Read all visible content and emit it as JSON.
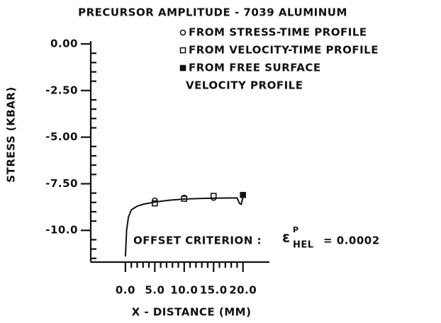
{
  "chart_data": {
    "type": "scatter",
    "title": "PRECURSOR AMPLITUDE - 7039 ALUMINUM",
    "xlabel": "X - DISTANCE (MM)",
    "ylabel": "STRESS (KBAR)",
    "xlim": [
      -5.9,
      24.5
    ],
    "ylim": [
      -11.7,
      0
    ],
    "xticks": [
      {
        "value": 0,
        "label": "0.0"
      },
      {
        "value": 5,
        "label": "5.0"
      },
      {
        "value": 10,
        "label": "10.0"
      },
      {
        "value": 15,
        "label": "15.0"
      },
      {
        "value": 20,
        "label": "20.0"
      }
    ],
    "yticks": [
      {
        "value": 0,
        "label": "0.00"
      },
      {
        "value": -2.5,
        "label": "-2.50"
      },
      {
        "value": -5,
        "label": "-5.00"
      },
      {
        "value": -7.5,
        "label": "-7.50"
      },
      {
        "value": -10,
        "label": "-10.0"
      }
    ],
    "xminorticks": [
      1,
      2,
      3,
      4,
      6,
      7,
      8,
      9,
      11,
      12,
      13,
      14,
      16,
      17,
      18,
      19
    ],
    "yminorticks": [
      -0.5,
      -1,
      -1.5,
      -2,
      -3,
      -3.5,
      -4,
      -4.5,
      -5.5,
      -6,
      -6.5,
      -7,
      -8,
      -8.5,
      -9,
      -9.5,
      -10.5,
      -11,
      -11.5
    ],
    "series": [
      {
        "name": "FROM STRESS-TIME PROFILE",
        "marker": "circle",
        "color": "#111",
        "x": [
          5,
          10,
          15
        ],
        "values": [
          -8.4,
          -8.25,
          -8.25
        ]
      },
      {
        "name": "FROM VELOCITY-TIME PROFILE",
        "marker": "square",
        "color": "#111",
        "x": [
          5,
          10,
          15
        ],
        "values": [
          -8.55,
          -8.3,
          -8.15
        ]
      },
      {
        "name": [
          "FROM FREE SURFACE",
          "VELOCITY PROFILE"
        ],
        "marker": "filled-square",
        "color": "#111",
        "x": [
          20
        ],
        "values": [
          -8.1
        ]
      },
      {
        "type": "line",
        "color": "#111",
        "x": [
          0,
          0.2,
          0.5,
          1,
          2,
          3,
          5,
          7.5,
          10,
          12.5,
          15,
          17.5,
          19,
          19.4,
          19.7,
          20
        ],
        "values": [
          -11.4,
          -10,
          -9.3,
          -8.9,
          -8.7,
          -8.6,
          -8.48,
          -8.38,
          -8.32,
          -8.29,
          -8.27,
          -8.26,
          -8.26,
          -8.55,
          -8.6,
          -8.2
        ]
      }
    ],
    "annotations": [
      "OFFSET CRITERION :",
      "ε",
      "P",
      "HEL",
      "= 0.0002"
    ]
  }
}
